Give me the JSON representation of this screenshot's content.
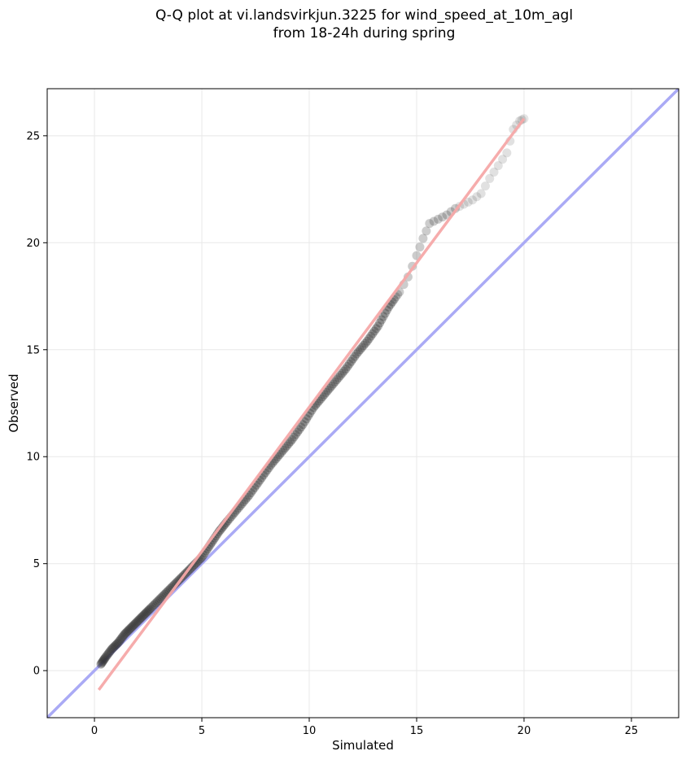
{
  "chart_data": {
    "type": "scatter",
    "title_line1": "Q-Q plot at vi.landsvirkjun.3225 for wind_speed_at_10m_agl",
    "title_line2": "from 18-24h during spring",
    "xlabel": "Simulated",
    "ylabel": "Observed",
    "xlim": [
      -2.2,
      27.2
    ],
    "ylim": [
      -2.2,
      27.2
    ],
    "x_ticks": [
      0,
      5,
      10,
      15,
      20,
      25
    ],
    "y_ticks": [
      0,
      5,
      10,
      15,
      20,
      25
    ],
    "grid": true,
    "identity_line_color": "#aaaaf5",
    "fit_line_color": "#f5a8a8",
    "point_color": "#333333",
    "identity_line": {
      "x": [
        -2.2,
        27.2
      ],
      "y": [
        -2.2,
        27.2
      ]
    },
    "fit_line": {
      "x": [
        0.2,
        20.0
      ],
      "y": [
        -0.9,
        25.8
      ]
    },
    "quantiles": {
      "x": [
        0.3,
        0.5,
        0.8,
        1.1,
        1.4,
        1.7,
        2.0,
        2.3,
        2.6,
        3.0,
        3.4,
        3.8,
        4.2,
        4.6,
        5.0,
        5.4,
        5.8,
        6.2,
        6.7,
        7.2,
        7.7,
        8.2,
        8.7,
        9.2,
        9.7,
        10.2,
        10.7,
        11.2,
        11.7,
        12.2,
        12.7,
        13.2,
        13.7,
        14.2,
        14.6,
        15.0,
        15.3,
        15.6,
        16.0,
        16.4,
        16.8,
        17.2,
        17.6,
        18.0,
        18.4,
        18.8,
        19.2,
        19.5,
        19.8,
        20.0
      ],
      "y": [
        0.3,
        0.6,
        1.0,
        1.3,
        1.7,
        2.0,
        2.3,
        2.6,
        2.9,
        3.3,
        3.7,
        4.1,
        4.5,
        4.9,
        5.3,
        5.9,
        6.5,
        7.0,
        7.6,
        8.2,
        8.9,
        9.6,
        10.2,
        10.8,
        11.5,
        12.3,
        12.9,
        13.5,
        14.1,
        14.8,
        15.4,
        16.1,
        17.0,
        17.7,
        18.4,
        19.4,
        20.2,
        20.9,
        21.1,
        21.3,
        21.6,
        21.8,
        22.0,
        22.3,
        23.0,
        23.6,
        24.2,
        25.3,
        25.7,
        25.8
      ]
    }
  }
}
